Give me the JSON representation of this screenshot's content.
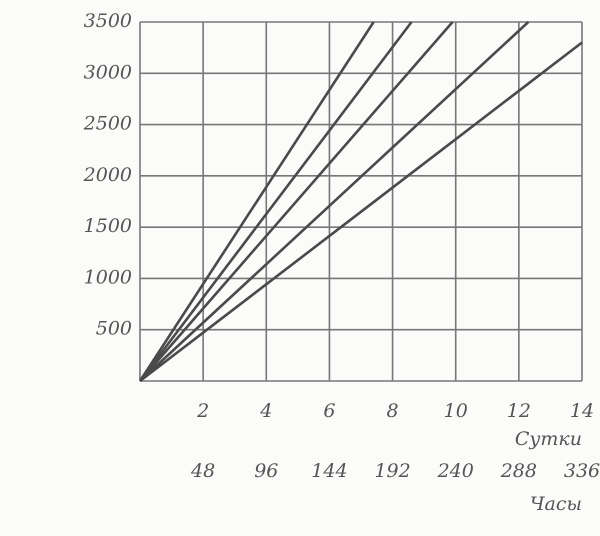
{
  "chart_data": {
    "type": "line",
    "xlabel": "Сутки",
    "x2label": "Часы",
    "xlim": [
      0,
      14
    ],
    "xticks": [
      2,
      4,
      6,
      8,
      10,
      12,
      14
    ],
    "x2lim": [
      0,
      336
    ],
    "x2ticks": [
      48,
      96,
      144,
      192,
      240,
      288,
      336
    ],
    "ylim": [
      0,
      3500
    ],
    "yticks": [
      500,
      1000,
      1500,
      2000,
      2500,
      3000,
      3500
    ],
    "grid": true,
    "series": [
      {
        "color": "#4a4a4a",
        "x": [
          0,
          7.4
        ],
        "values": [
          0,
          3500
        ]
      },
      {
        "color": "#4a4a4a",
        "x": [
          0,
          8.6
        ],
        "values": [
          0,
          3500
        ]
      },
      {
        "color": "#4a4a4a",
        "x": [
          0,
          9.9
        ],
        "values": [
          0,
          3500
        ]
      },
      {
        "color": "#4a4a4a",
        "x": [
          0,
          12.3
        ],
        "values": [
          0,
          3500
        ]
      },
      {
        "color": "#4a4a4a",
        "x": [
          0,
          14
        ],
        "values": [
          0,
          3300
        ]
      }
    ]
  }
}
